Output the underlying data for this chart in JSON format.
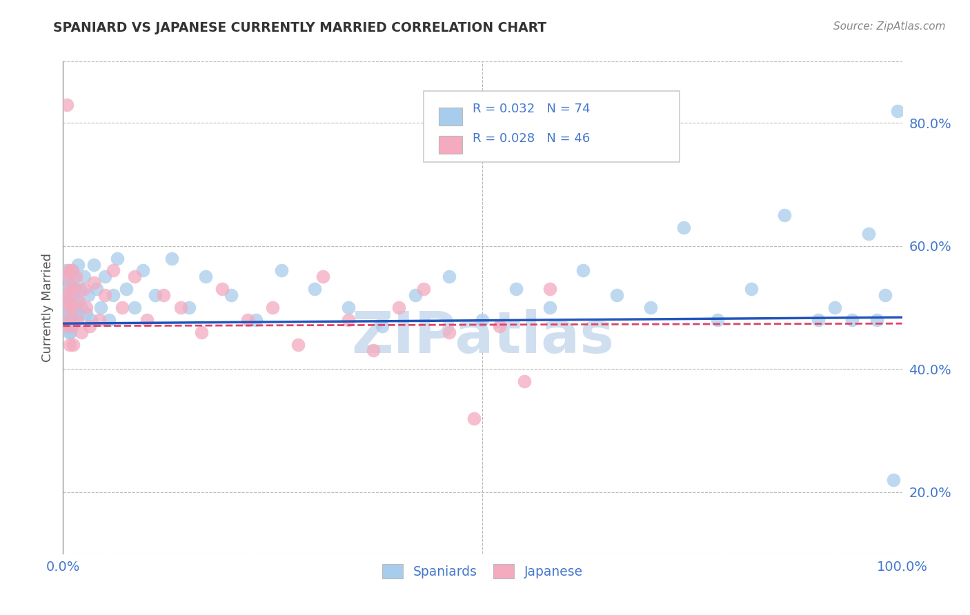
{
  "title": "SPANIARD VS JAPANESE CURRENTLY MARRIED CORRELATION CHART",
  "source_text": "Source: ZipAtlas.com",
  "ylabel": "Currently Married",
  "spaniards_R": "0.032",
  "spaniards_N": 74,
  "japanese_R": "0.028",
  "japanese_N": 46,
  "blue_color": "#A8CCEC",
  "pink_color": "#F4AABF",
  "blue_line_color": "#2255BB",
  "pink_line_color": "#DD4466",
  "watermark_color": "#D0DFF0",
  "background_color": "#FFFFFF",
  "grid_color": "#BBBBBB",
  "title_color": "#333333",
  "axis_tick_color": "#4477CC",
  "source_color": "#888888",
  "ylabel_color": "#555555",
  "blue_scatter_x": [
    0.003,
    0.004,
    0.004,
    0.005,
    0.005,
    0.005,
    0.006,
    0.006,
    0.007,
    0.007,
    0.008,
    0.008,
    0.009,
    0.009,
    0.01,
    0.01,
    0.01,
    0.011,
    0.011,
    0.012,
    0.012,
    0.013,
    0.014,
    0.015,
    0.016,
    0.017,
    0.018,
    0.019,
    0.02,
    0.022,
    0.025,
    0.028,
    0.03,
    0.033,
    0.037,
    0.04,
    0.045,
    0.05,
    0.055,
    0.06,
    0.065,
    0.075,
    0.085,
    0.095,
    0.11,
    0.13,
    0.15,
    0.17,
    0.2,
    0.23,
    0.26,
    0.3,
    0.34,
    0.38,
    0.42,
    0.46,
    0.5,
    0.54,
    0.58,
    0.62,
    0.66,
    0.7,
    0.74,
    0.78,
    0.82,
    0.86,
    0.9,
    0.92,
    0.94,
    0.96,
    0.97,
    0.98,
    0.99,
    0.995
  ],
  "blue_scatter_y": [
    0.48,
    0.52,
    0.56,
    0.5,
    0.53,
    0.47,
    0.49,
    0.55,
    0.46,
    0.51,
    0.54,
    0.48,
    0.52,
    0.46,
    0.5,
    0.53,
    0.47,
    0.56,
    0.49,
    0.52,
    0.48,
    0.55,
    0.5,
    0.53,
    0.48,
    0.51,
    0.57,
    0.49,
    0.53,
    0.5,
    0.55,
    0.49,
    0.52,
    0.48,
    0.57,
    0.53,
    0.5,
    0.55,
    0.48,
    0.52,
    0.58,
    0.53,
    0.5,
    0.56,
    0.52,
    0.58,
    0.5,
    0.55,
    0.52,
    0.48,
    0.56,
    0.53,
    0.5,
    0.47,
    0.52,
    0.55,
    0.48,
    0.53,
    0.5,
    0.56,
    0.52,
    0.5,
    0.63,
    0.48,
    0.53,
    0.65,
    0.48,
    0.5,
    0.48,
    0.62,
    0.48,
    0.52,
    0.22,
    0.82
  ],
  "pink_scatter_x": [
    0.003,
    0.004,
    0.005,
    0.005,
    0.006,
    0.006,
    0.007,
    0.008,
    0.008,
    0.009,
    0.01,
    0.01,
    0.011,
    0.012,
    0.013,
    0.015,
    0.017,
    0.019,
    0.022,
    0.025,
    0.028,
    0.032,
    0.037,
    0.043,
    0.05,
    0.06,
    0.07,
    0.085,
    0.1,
    0.12,
    0.14,
    0.165,
    0.19,
    0.22,
    0.25,
    0.28,
    0.31,
    0.34,
    0.37,
    0.4,
    0.43,
    0.46,
    0.49,
    0.52,
    0.55,
    0.58
  ],
  "pink_scatter_y": [
    0.51,
    0.55,
    0.47,
    0.83,
    0.52,
    0.48,
    0.56,
    0.44,
    0.5,
    0.53,
    0.47,
    0.56,
    0.5,
    0.44,
    0.53,
    0.55,
    0.48,
    0.51,
    0.46,
    0.53,
    0.5,
    0.47,
    0.54,
    0.48,
    0.52,
    0.56,
    0.5,
    0.55,
    0.48,
    0.52,
    0.5,
    0.46,
    0.53,
    0.48,
    0.5,
    0.44,
    0.55,
    0.48,
    0.43,
    0.5,
    0.53,
    0.46,
    0.32,
    0.47,
    0.38,
    0.53
  ],
  "xlim": [
    0.0,
    1.0
  ],
  "ylim": [
    0.1,
    0.9
  ],
  "yticks": [
    0.2,
    0.4,
    0.6,
    0.8
  ],
  "ytick_labels": [
    "20.0%",
    "40.0%",
    "60.0%",
    "80.0%"
  ],
  "xtick_labels": [
    "0.0%",
    "100.0%"
  ],
  "blue_trend_y0": 0.474,
  "blue_trend_y1": 0.484,
  "pink_trend_y0": 0.47,
  "pink_trend_y1": 0.474
}
